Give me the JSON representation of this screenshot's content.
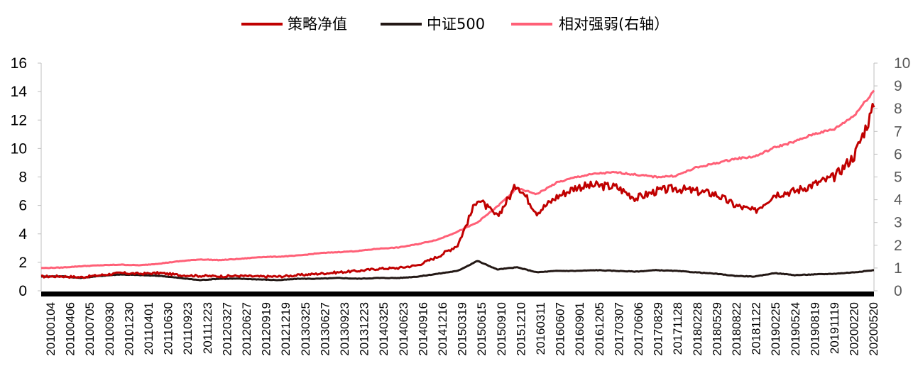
{
  "chart_data": {
    "type": "line",
    "title": "",
    "xlabel": "",
    "ylabel": "",
    "ylim": [
      0,
      16
    ],
    "y_ticks": [
      "0",
      "2",
      "4",
      "6",
      "8",
      "10",
      "12",
      "14",
      "16"
    ],
    "y2lim": [
      0,
      10
    ],
    "y2_ticks": [
      "0",
      "1",
      "2",
      "3",
      "4",
      "5",
      "6",
      "7",
      "8",
      "9",
      "10"
    ],
    "x_tick_labels": [
      "20100104",
      "20100406",
      "20100705",
      "20100930",
      "20101230",
      "20110401",
      "20110630",
      "20110923",
      "20111223",
      "20120327",
      "20120627",
      "20120919",
      "20121219",
      "20130325",
      "20130627",
      "20130923",
      "20131223",
      "20140325",
      "20140623",
      "20140916",
      "20141216",
      "20150319",
      "20150615",
      "20150910",
      "20151210",
      "20160311",
      "20160607",
      "20160901",
      "20161205",
      "20170307",
      "20170606",
      "20170829",
      "20171128",
      "20180228",
      "20180529",
      "20180822",
      "20181122",
      "20190225",
      "20190524",
      "20190819",
      "20191119",
      "20200220",
      "20200520"
    ],
    "grid": false,
    "legend_position": "top",
    "series": [
      {
        "name": "策略净值",
        "color": "#C00000",
        "axis": "left",
        "values": [
          1.0,
          1.02,
          0.95,
          1.1,
          1.25,
          1.2,
          1.25,
          1.1,
          1.05,
          1.02,
          1.05,
          1.0,
          1.0,
          1.1,
          1.2,
          1.3,
          1.4,
          1.55,
          1.6,
          1.8,
          2.4,
          3.2,
          6.5,
          5.2,
          7.5,
          5.5,
          6.6,
          7.3,
          7.4,
          7.3,
          6.5,
          7.0,
          7.2,
          7.0,
          6.8,
          6.0,
          5.6,
          6.8,
          7.0,
          7.5,
          8.0,
          9.5,
          12.9
        ]
      },
      {
        "name": "中证500",
        "color": "#231815",
        "axis": "left",
        "values": [
          1.0,
          1.02,
          0.9,
          1.05,
          1.15,
          1.1,
          1.05,
          0.9,
          0.75,
          0.85,
          0.85,
          0.8,
          0.75,
          0.85,
          0.85,
          0.9,
          0.85,
          0.9,
          0.9,
          1.0,
          1.2,
          1.4,
          2.1,
          1.5,
          1.65,
          1.3,
          1.4,
          1.4,
          1.45,
          1.4,
          1.35,
          1.45,
          1.4,
          1.3,
          1.2,
          1.05,
          1.0,
          1.25,
          1.1,
          1.15,
          1.2,
          1.3,
          1.45
        ]
      },
      {
        "name": "相对强弱(右轴）",
        "color": "#FF6077",
        "axis": "right",
        "values": [
          1.0,
          1.02,
          1.08,
          1.12,
          1.15,
          1.12,
          1.2,
          1.3,
          1.38,
          1.35,
          1.4,
          1.48,
          1.5,
          1.55,
          1.65,
          1.7,
          1.75,
          1.85,
          1.9,
          2.05,
          2.25,
          2.6,
          3.0,
          3.7,
          4.5,
          4.25,
          4.75,
          5.0,
          5.15,
          5.2,
          5.1,
          5.0,
          5.05,
          5.4,
          5.6,
          5.8,
          5.9,
          6.3,
          6.55,
          6.9,
          7.1,
          7.7,
          8.8
        ]
      }
    ]
  }
}
